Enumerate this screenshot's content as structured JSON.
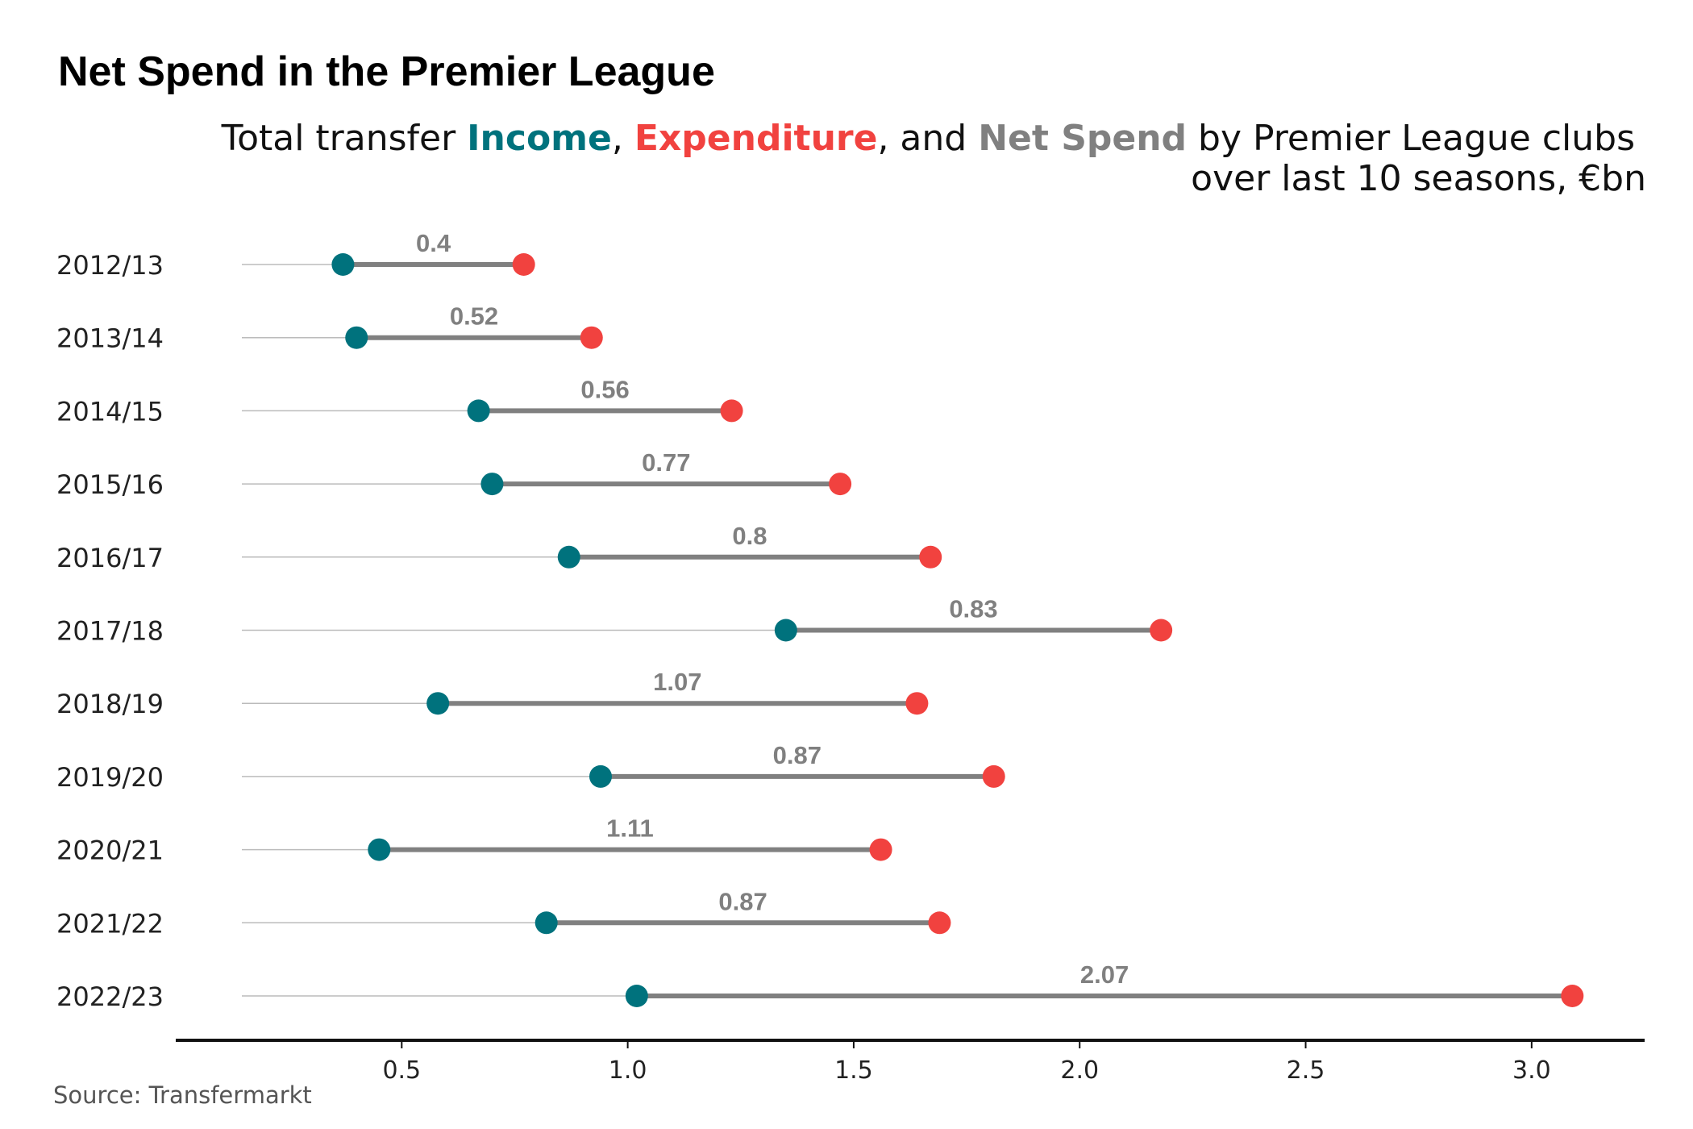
{
  "header": {
    "title": "Net Spend in the Premier League",
    "subtitle": {
      "prefix": "Total transfer ",
      "income_word": "Income",
      "comma": ", ",
      "expenditure_word": "Expenditure",
      "and_text": ", and ",
      "netspend_word": "Net Spend",
      "suffix": " by Premier League clubs",
      "line2": "over last 10 seasons, €bn"
    }
  },
  "colors": {
    "income": "#00727d",
    "expenditure": "#f1423f",
    "net_spend": "#808080",
    "guide": "#bbbbbb",
    "axis": "#111111"
  },
  "source": "Source: Transfermarkt",
  "chart_data": {
    "type": "dumbbell",
    "title": "Net Spend in the Premier League",
    "subtitle": "Total transfer Income, Expenditure, and Net Spend by Premier League clubs over last 10 seasons, €bn",
    "categories": [
      "2012/13",
      "2013/14",
      "2014/15",
      "2015/16",
      "2016/17",
      "2017/18",
      "2018/19",
      "2019/20",
      "2020/21",
      "2021/22",
      "2022/23"
    ],
    "series": [
      {
        "name": "Income",
        "values": [
          0.37,
          0.4,
          0.67,
          0.7,
          0.87,
          1.35,
          0.58,
          0.94,
          0.45,
          0.82,
          1.02
        ]
      },
      {
        "name": "Expenditure",
        "values": [
          0.77,
          0.92,
          1.23,
          1.47,
          1.67,
          2.18,
          1.64,
          1.81,
          1.56,
          1.69,
          3.09
        ]
      },
      {
        "name": "Net Spend",
        "values": [
          0.4,
          0.52,
          0.56,
          0.77,
          0.8,
          0.83,
          1.07,
          0.87,
          1.11,
          0.87,
          2.07
        ]
      }
    ],
    "net_labels": [
      "0.4",
      "0.52",
      "0.56",
      "0.77",
      "0.8",
      "0.83",
      "1.07",
      "0.87",
      "1.11",
      "0.87",
      "2.07"
    ],
    "x_ticks": [
      0.5,
      1.0,
      1.5,
      2.0,
      2.5,
      3.0
    ],
    "x_tick_labels": [
      "0.5",
      "1.0",
      "1.5",
      "2.0",
      "2.5",
      "3.0"
    ],
    "xlim": [
      0,
      3.25
    ],
    "xlabel": "",
    "ylabel": "",
    "grid": false,
    "legend": "none (colors explained in subtitle)"
  }
}
